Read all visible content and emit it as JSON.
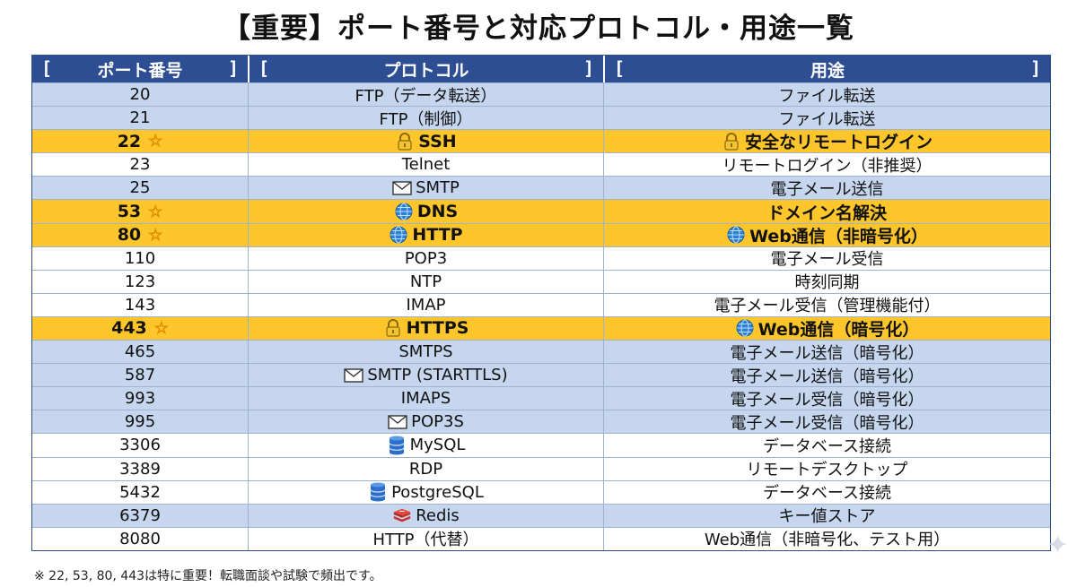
{
  "title": "【重要】ポート番号と対応プロトコル・用途一覧",
  "headers": {
    "port": "ポート番号",
    "protocol": "プロトコル",
    "usage": "用途",
    "bracket_open": "[",
    "bracket_close": "]"
  },
  "colors": {
    "header_bg": "#2e4e94",
    "important_bg": "#ffc62c",
    "band_blue": "#c5d6ee",
    "band_white": "#ffffff"
  },
  "rows": [
    {
      "port": "20",
      "protocol": "FTP（データ転送）",
      "usage": "ファイル転送",
      "icon": "",
      "usage_icon": "",
      "important": false,
      "band": "blue"
    },
    {
      "port": "21",
      "protocol": "FTP（制御）",
      "usage": "ファイル転送",
      "icon": "",
      "usage_icon": "",
      "important": false,
      "band": "blue"
    },
    {
      "port": "22",
      "protocol": "SSH",
      "usage": "安全なリモートログイン",
      "icon": "lock-icon",
      "usage_icon": "lock-icon",
      "important": true
    },
    {
      "port": "23",
      "protocol": "Telnet",
      "usage": "リモートログイン（非推奨）",
      "icon": "",
      "usage_icon": "",
      "important": false,
      "band": "white"
    },
    {
      "port": "25",
      "protocol": "SMTP",
      "usage": "電子メール送信",
      "icon": "mail-icon",
      "usage_icon": "",
      "important": false,
      "band": "blue"
    },
    {
      "port": "53",
      "protocol": "DNS",
      "usage": "ドメイン名解決",
      "icon": "globe-icon",
      "usage_icon": "",
      "important": true
    },
    {
      "port": "80",
      "protocol": "HTTP",
      "usage": "Web通信（非暗号化）",
      "icon": "globe-icon",
      "usage_icon": "globe-icon",
      "important": true
    },
    {
      "port": "110",
      "protocol": "POP3",
      "usage": "電子メール受信",
      "icon": "",
      "usage_icon": "",
      "important": false,
      "band": "white"
    },
    {
      "port": "123",
      "protocol": "NTP",
      "usage": "時刻同期",
      "icon": "",
      "usage_icon": "",
      "important": false,
      "band": "white"
    },
    {
      "port": "143",
      "protocol": "IMAP",
      "usage": "電子メール受信（管理機能付）",
      "icon": "",
      "usage_icon": "",
      "important": false,
      "band": "white"
    },
    {
      "port": "443",
      "protocol": "HTTPS",
      "usage": "Web通信（暗号化）",
      "icon": "lock-icon",
      "usage_icon": "globe-icon",
      "important": true
    },
    {
      "port": "465",
      "protocol": "SMTPS",
      "usage": "電子メール送信（暗号化）",
      "icon": "",
      "usage_icon": "",
      "important": false,
      "band": "blue"
    },
    {
      "port": "587",
      "protocol": "SMTP (STARTTLS)",
      "usage": "電子メール送信（暗号化）",
      "icon": "mail-icon",
      "usage_icon": "",
      "important": false,
      "band": "blue"
    },
    {
      "port": "993",
      "protocol": "IMAPS",
      "usage": "電子メール受信（暗号化）",
      "icon": "",
      "usage_icon": "",
      "important": false,
      "band": "blue"
    },
    {
      "port": "995",
      "protocol": "POP3S",
      "usage": "電子メール受信（暗号化）",
      "icon": "mail-icon",
      "usage_icon": "",
      "important": false,
      "band": "blue"
    },
    {
      "port": "3306",
      "protocol": "MySQL",
      "usage": "データベース接続",
      "icon": "database-icon",
      "usage_icon": "",
      "important": false,
      "band": "white"
    },
    {
      "port": "3389",
      "protocol": "RDP",
      "usage": "リモートデスクトップ",
      "icon": "",
      "usage_icon": "",
      "important": false,
      "band": "white"
    },
    {
      "port": "5432",
      "protocol": "PostgreSQL",
      "usage": "データベース接続",
      "icon": "database-icon",
      "usage_icon": "",
      "important": false,
      "band": "white"
    },
    {
      "port": "6379",
      "protocol": "Redis",
      "usage": "キー値ストア",
      "icon": "redis-icon",
      "usage_icon": "",
      "important": false,
      "band": "blue"
    },
    {
      "port": "8080",
      "protocol": "HTTP（代替）",
      "usage": "Web通信（非暗号化、テスト用）",
      "icon": "",
      "usage_icon": "",
      "important": false,
      "band": "white"
    }
  ],
  "star_glyph": "☆",
  "footnote": "※ 22, 53, 80, 443は特に重要！転職面談や試験で頻出です。"
}
